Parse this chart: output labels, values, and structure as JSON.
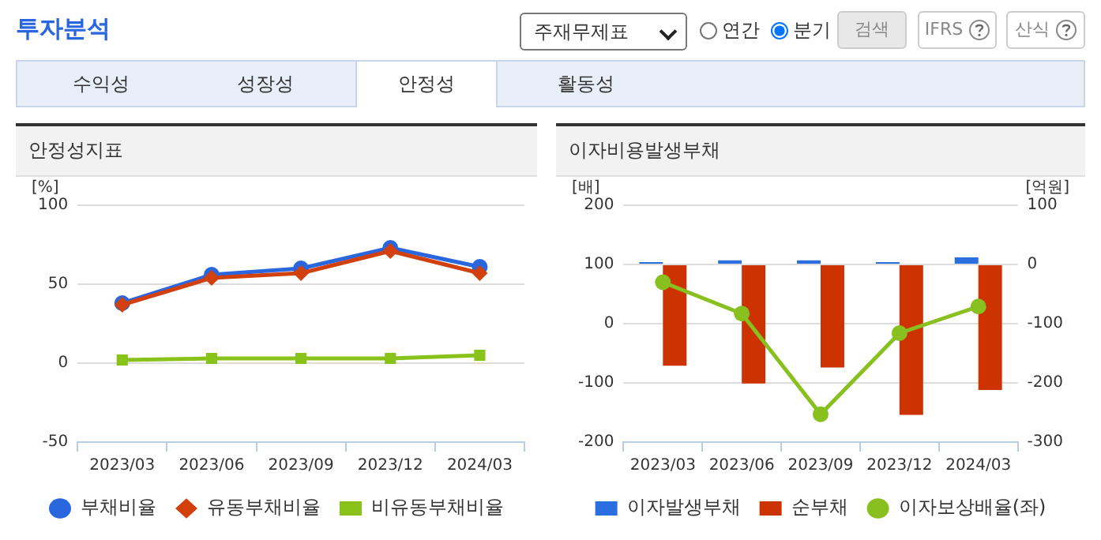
{
  "chart_data": [
    {
      "type": "other",
      "title": "투자분석",
      "annotations": [
        "주재무제표",
        "연간",
        "분기",
        "검색",
        "IFRS",
        "산식",
        "수익성",
        "성장성",
        "안정성",
        "활동성"
      ]
    },
    {
      "type": "line",
      "title": "안정성지표",
      "ylabel": "[%]",
      "categories": [
        "2023/03",
        "2023/06",
        "2023/09",
        "2023/12",
        "2024/03"
      ],
      "series": [
        {
          "name": "부채비율",
          "color": "#2a66dd",
          "marker": "circle",
          "values": [
            38,
            56,
            60,
            73,
            61
          ]
        },
        {
          "name": "유동부채비율",
          "color": "#d2400e",
          "marker": "diamond",
          "values": [
            37,
            54,
            57,
            71,
            57
          ]
        },
        {
          "name": "비유동부채비율",
          "color": "#88c21a",
          "marker": "square",
          "values": [
            2,
            3,
            3,
            3,
            5
          ]
        }
      ],
      "ylim": [
        -50,
        100
      ],
      "yticks": [
        -50,
        0,
        50,
        100
      ],
      "grid": "y",
      "legend": "bottom"
    },
    {
      "type": "bar",
      "title": "이자비용발생부채",
      "ylabel": "[배]",
      "y2label": "[억원]",
      "categories": [
        "2023/03",
        "2023/06",
        "2023/09",
        "2023/12",
        "2024/03"
      ],
      "series": [
        {
          "name": "이자발생부채",
          "color": "#2a6ee0",
          "axis": "y2",
          "values": [
            4,
            7,
            7,
            4,
            12
          ]
        },
        {
          "name": "순부채",
          "color": "#cc3300",
          "axis": "y2",
          "values": [
            -171,
            -201,
            -174,
            -254,
            -212
          ]
        },
        {
          "name": "이자보상배율(좌)",
          "type": "line",
          "color": "#88c020",
          "marker": "circle",
          "values": [
            70,
            17,
            -153,
            -16,
            29
          ]
        }
      ],
      "ylim": [
        -200,
        200
      ],
      "yticks": [
        -200,
        -100,
        0,
        100,
        200
      ],
      "y2lim": [
        -300,
        100
      ],
      "y2ticks": [
        -300,
        -200,
        -100,
        0,
        100
      ],
      "grid": "y",
      "legend": "bottom"
    }
  ]
}
